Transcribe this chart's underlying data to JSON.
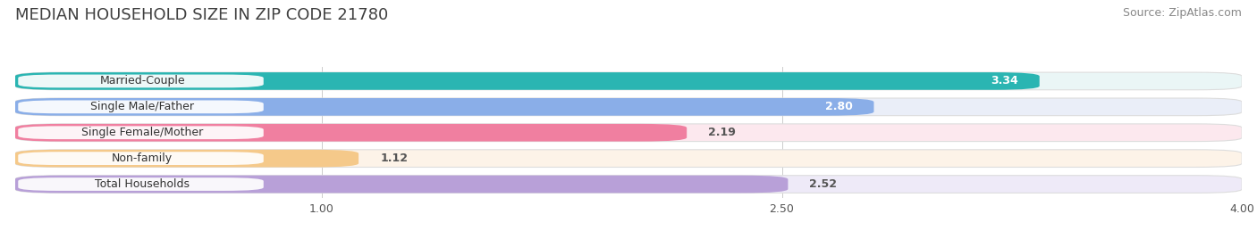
{
  "title": "MEDIAN HOUSEHOLD SIZE IN ZIP CODE 21780",
  "source": "Source: ZipAtlas.com",
  "categories": [
    "Married-Couple",
    "Single Male/Father",
    "Single Female/Mother",
    "Non-family",
    "Total Households"
  ],
  "values": [
    3.34,
    2.8,
    2.19,
    1.12,
    2.52
  ],
  "bar_colors": [
    "#2ab5b2",
    "#8aaee8",
    "#f07fa0",
    "#f5c98a",
    "#b8a0d8"
  ],
  "bar_bg_colors": [
    "#eaf6f6",
    "#eaeef8",
    "#fce8ee",
    "#fdf3e8",
    "#eeeaf8"
  ],
  "xlim": [
    0,
    4.0
  ],
  "xticks": [
    1.0,
    2.5,
    4.0
  ],
  "title_fontsize": 13,
  "source_fontsize": 9,
  "bar_label_fontsize": 9,
  "value_fontsize": 9,
  "tick_fontsize": 9,
  "background_color": "#ffffff"
}
